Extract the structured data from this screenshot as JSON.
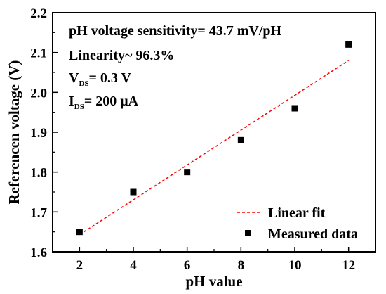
{
  "chart_data": {
    "type": "scatter",
    "xlabel": "pH value",
    "ylabel": "Referencen voltage (V)",
    "xlim": [
      1,
      13
    ],
    "ylim": [
      1.6,
      2.2
    ],
    "xticks": [
      2,
      4,
      6,
      8,
      10,
      12
    ],
    "yticks": [
      1.6,
      1.7,
      1.8,
      1.9,
      2.0,
      2.1,
      2.2
    ],
    "ytick_labels": [
      "1.6",
      "1.7",
      "1.8",
      "1.9",
      "2.0",
      "2.1",
      "2.2"
    ],
    "series": [
      {
        "name": "Measured data",
        "kind": "scatter",
        "marker": "square",
        "color": "#000000",
        "x": [
          2,
          4,
          6,
          8,
          10,
          12
        ],
        "y": [
          1.65,
          1.75,
          1.8,
          1.88,
          1.96,
          2.12
        ]
      },
      {
        "name": "Linear fit",
        "kind": "line",
        "style": "dashed",
        "color": "#ff0000",
        "x": [
          2,
          12
        ],
        "y": [
          1.643,
          2.08
        ]
      }
    ],
    "annotations": {
      "sensitivity": "pH voltage sensitivity= 43.7 mV/pH",
      "linearity": "Linearity~ 96.3%",
      "vds_main": "V",
      "vds_sub": "DS",
      "vds_value": "= 0.3 V",
      "ids_main": "I",
      "ids_sub": "DS",
      "ids_value": "= 200 μA"
    },
    "legend": {
      "position": "bottom-right",
      "entries": [
        "Linear fit",
        "Measured data"
      ]
    },
    "grid": false
  }
}
